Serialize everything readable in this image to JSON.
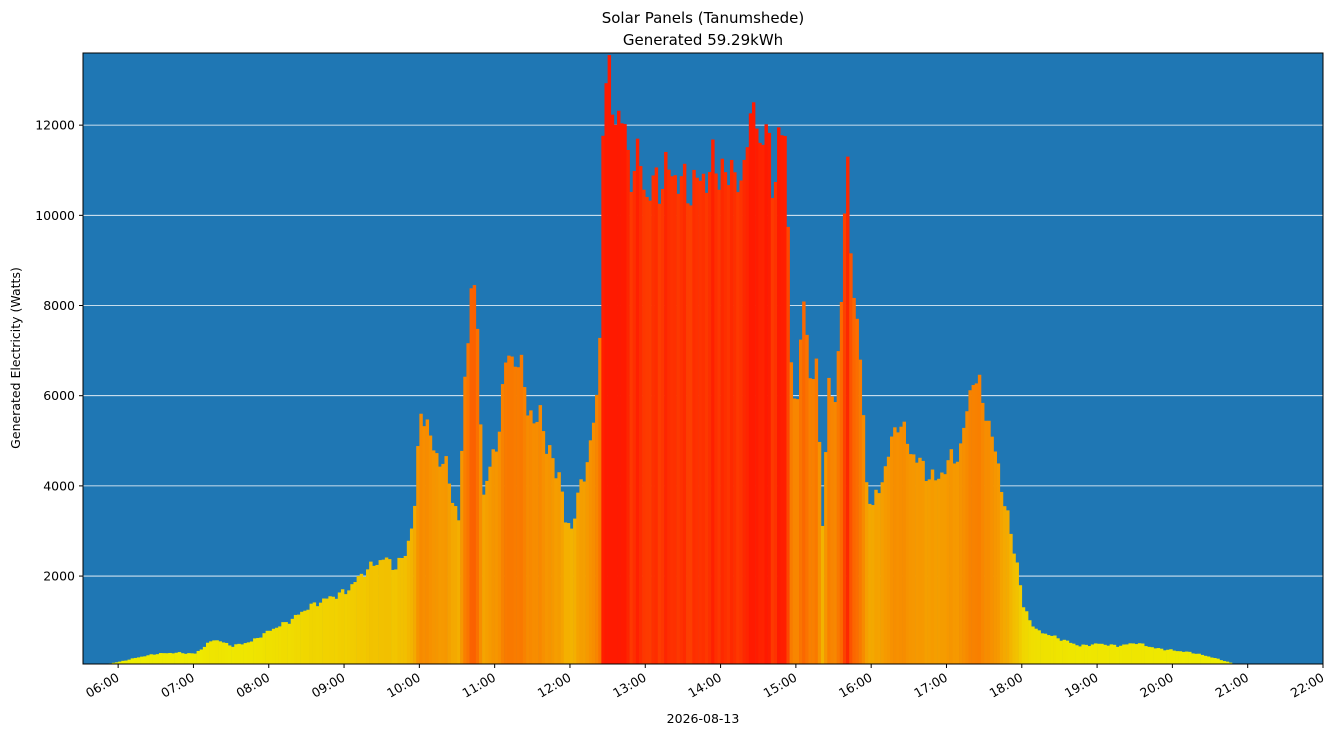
{
  "chart_data": {
    "type": "bar",
    "title": "Solar Panels (Tanumshede)",
    "subtitle": "Generated 59.29kWh",
    "xlabel": "2026-08-13",
    "ylabel": "Generated Electricity (Watts)",
    "ylim": [
      50,
      13600
    ],
    "xlim": [
      "05:32",
      "22:00"
    ],
    "grid": "horizontal",
    "background_color": "#1f77b4",
    "grid_color": "#ffffff",
    "colormap": [
      "#eef000",
      "#f5a000",
      "#fb6a00",
      "#ff1a00"
    ],
    "x_ticks": [
      "06:00",
      "07:00",
      "08:00",
      "09:00",
      "10:00",
      "11:00",
      "12:00",
      "13:00",
      "14:00",
      "15:00",
      "16:00",
      "17:00",
      "18:00",
      "19:00",
      "20:00",
      "21:00",
      "22:00"
    ],
    "y_ticks": [
      2000,
      4000,
      6000,
      8000,
      10000,
      12000
    ],
    "bar_minutes": 2.5,
    "series": [
      {
        "x": [
          "05:45",
          "06:00",
          "06:15",
          "06:30",
          "06:45",
          "07:00",
          "07:15",
          "07:30",
          "07:45",
          "08:00",
          "08:15",
          "08:30",
          "08:45",
          "09:00",
          "09:15",
          "09:30",
          "09:40",
          "09:48",
          "09:55",
          "10:00",
          "10:10",
          "10:20",
          "10:30",
          "10:35",
          "10:40",
          "10:45",
          "10:50",
          "10:55",
          "11:00",
          "11:10",
          "11:15",
          "11:20",
          "11:30",
          "11:35",
          "11:40",
          "11:50",
          "11:55",
          "12:00",
          "12:05",
          "12:15",
          "12:22",
          "12:25",
          "12:30",
          "12:35",
          "12:40",
          "12:45",
          "12:50",
          "12:55",
          "13:00",
          "13:10",
          "13:20",
          "13:30",
          "13:40",
          "13:50",
          "14:00",
          "14:05",
          "14:10",
          "14:15",
          "14:20",
          "14:25",
          "14:30",
          "14:35",
          "14:40",
          "14:45",
          "14:50",
          "14:55",
          "15:00",
          "15:05",
          "15:10",
          "15:15",
          "15:20",
          "15:25",
          "15:30",
          "15:35",
          "15:40",
          "15:45",
          "15:50",
          "15:55",
          "16:00",
          "16:10",
          "16:20",
          "16:30",
          "16:40",
          "16:50",
          "17:00",
          "17:10",
          "17:20",
          "17:30",
          "17:40",
          "17:50",
          "17:55",
          "18:00",
          "18:10",
          "18:20",
          "18:30",
          "18:45",
          "19:00",
          "19:15",
          "19:30",
          "19:45",
          "20:00",
          "20:15",
          "20:30",
          "20:45"
        ],
        "y": [
          30,
          100,
          200,
          280,
          300,
          280,
          600,
          450,
          550,
          800,
          1000,
          1300,
          1500,
          1650,
          2100,
          2400,
          2200,
          2500,
          3500,
          5800,
          4800,
          4400,
          3200,
          6300,
          8600,
          7400,
          3800,
          4400,
          4900,
          7100,
          6700,
          6600,
          5200,
          5800,
          4800,
          4300,
          3200,
          3100,
          3700,
          4900,
          6300,
          12400,
          12900,
          12300,
          12100,
          11300,
          11000,
          11200,
          10400,
          10800,
          11000,
          10600,
          10700,
          11000,
          11100,
          10600,
          11400,
          10200,
          12000,
          12500,
          11200,
          12600,
          10100,
          12000,
          11800,
          6800,
          5800,
          8200,
          6500,
          6500,
          3300,
          6200,
          5800,
          8400,
          10900,
          8300,
          6800,
          4100,
          3500,
          4400,
          5500,
          4800,
          4400,
          4100,
          4500,
          4800,
          6500,
          5700,
          4400,
          2900,
          2300,
          1300,
          800,
          700,
          600,
          450,
          500,
          450,
          520,
          400,
          350,
          300,
          200,
          80
        ]
      }
    ]
  }
}
